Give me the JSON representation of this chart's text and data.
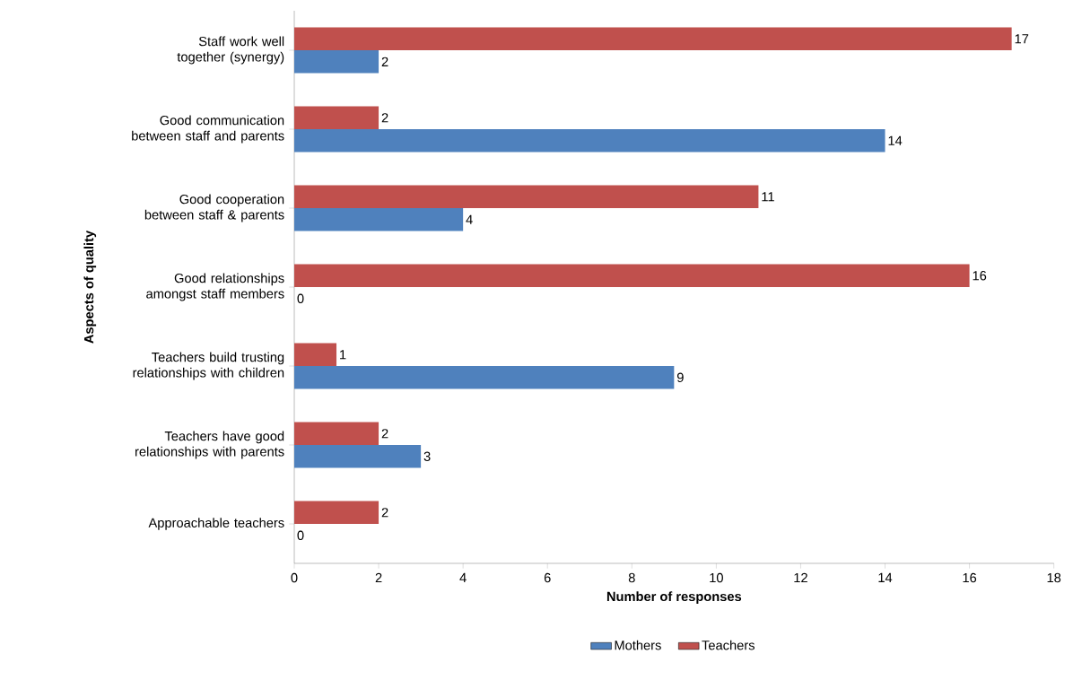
{
  "chart_data": {
    "type": "bar",
    "orientation": "horizontal",
    "xlabel": "Number of responses",
    "ylabel": "Aspects of quality",
    "categories": [
      "Staff work well together (synergy)",
      "Good communication between staff and parents",
      "Good cooperation between staff & parents",
      "Good relationships amongst staff members",
      "Teachers build trusting relationships with children",
      "Teachers have good relationships with parents",
      "Approachable teachers"
    ],
    "series": [
      {
        "name": "Mothers",
        "color": "#4f81bd",
        "values": [
          2,
          14,
          4,
          0,
          9,
          3,
          0
        ]
      },
      {
        "name": "Teachers",
        "color": "#c0504d",
        "values": [
          17,
          2,
          11,
          16,
          1,
          2,
          2
        ]
      }
    ],
    "xlim": [
      0,
      18
    ],
    "xticks": [
      0,
      2,
      4,
      6,
      8,
      10,
      12,
      14,
      16,
      18
    ],
    "data_labels": true,
    "legend": "bottom",
    "grid": false
  }
}
